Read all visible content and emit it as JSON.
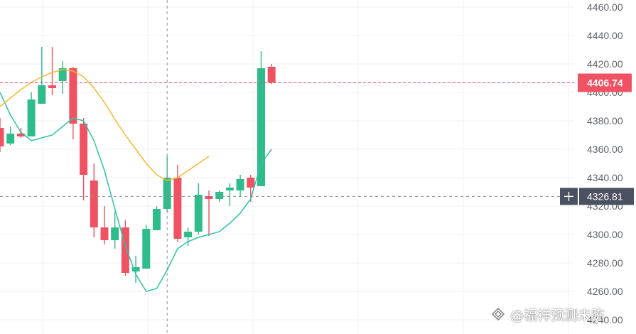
{
  "chart_data": {
    "type": "candlestick",
    "ylim": [
      4230,
      4465
    ],
    "y_ticks": [
      "4240.00",
      "4260.00",
      "4280.00",
      "4300.00",
      "4320.00",
      "4340.00",
      "4360.00",
      "4380.00",
      "4400.00",
      "4420.00",
      "4440.00",
      "4460.00"
    ],
    "candles": [
      {
        "o": 4375,
        "h": 4382,
        "l": 4358,
        "c": 4362
      },
      {
        "o": 4364,
        "h": 4376,
        "l": 4363,
        "c": 4371
      },
      {
        "o": 4371,
        "h": 4375,
        "l": 4368,
        "c": 4369
      },
      {
        "o": 4369,
        "h": 4400,
        "l": 4369,
        "c": 4395
      },
      {
        "o": 4392,
        "h": 4432,
        "l": 4392,
        "c": 4405
      },
      {
        "o": 4405,
        "h": 4432,
        "l": 4398,
        "c": 4403
      },
      {
        "o": 4408,
        "h": 4422,
        "l": 4399,
        "c": 4417
      },
      {
        "o": 4417,
        "h": 4418,
        "l": 4367,
        "c": 4378
      },
      {
        "o": 4378,
        "h": 4382,
        "l": 4324,
        "c": 4342
      },
      {
        "o": 4338,
        "h": 4350,
        "l": 4298,
        "c": 4305
      },
      {
        "o": 4305,
        "h": 4320,
        "l": 4293,
        "c": 4296
      },
      {
        "o": 4296,
        "h": 4316,
        "l": 4290,
        "c": 4305
      },
      {
        "o": 4305,
        "h": 4310,
        "l": 4271,
        "c": 4273
      },
      {
        "o": 4274,
        "h": 4285,
        "l": 4266,
        "c": 4277
      },
      {
        "o": 4276,
        "h": 4307,
        "l": 4276,
        "c": 4304
      },
      {
        "o": 4303,
        "h": 4320,
        "l": 4303,
        "c": 4318
      },
      {
        "o": 4318,
        "h": 4355,
        "l": 4316,
        "c": 4340
      },
      {
        "o": 4340,
        "h": 4349,
        "l": 4295,
        "c": 4297
      },
      {
        "o": 4298,
        "h": 4305,
        "l": 4292,
        "c": 4302
      },
      {
        "o": 4302,
        "h": 4336,
        "l": 4300,
        "c": 4328
      },
      {
        "o": 4327,
        "h": 4331,
        "l": 4299,
        "c": 4325
      },
      {
        "o": 4325,
        "h": 4331,
        "l": 4323,
        "c": 4330
      },
      {
        "o": 4331,
        "h": 4336,
        "l": 4320,
        "c": 4333
      },
      {
        "o": 4331,
        "h": 4342,
        "l": 4327,
        "c": 4339
      },
      {
        "o": 4340,
        "h": 4342,
        "l": 4323,
        "c": 4333
      },
      {
        "o": 4334,
        "h": 4429,
        "l": 4334,
        "c": 4417
      },
      {
        "o": 4418,
        "h": 4420,
        "l": 4406,
        "c": 4407
      }
    ],
    "series": [
      {
        "color": "#2ec4a7",
        "values": [
          4400,
          4384,
          4372,
          4366,
          4368,
          4370,
          4376,
          4382,
          4380,
          4366,
          4345,
          4318,
          4292,
          4272,
          4260,
          4262,
          4275,
          4290,
          4295,
          4298,
          4300,
          4302,
          4308,
          4315,
          4325,
          4350,
          4360
        ]
      },
      {
        "color": "#f5b82e",
        "values": [
          4390,
          4396,
          4402,
          4407,
          4411,
          4414,
          4416,
          4415,
          4411,
          4403,
          4393,
          4381,
          4370,
          4360,
          4350,
          4342,
          4338,
          4340,
          4345,
          4350,
          4355
        ]
      }
    ],
    "price_line": {
      "value": 4406.74,
      "label": "4406.74",
      "color": "#ef5363"
    },
    "crosshair": {
      "price": 4326.81,
      "label": "4326.81",
      "candle_index": 16
    },
    "colors": {
      "up": "#2ebd8a",
      "down": "#ef5363",
      "grid": "#f0f1f3",
      "cross": "#8c8f94"
    }
  },
  "watermark": {
    "text": "@福祥预测未陈",
    "icon": "thinking-bubble-icon"
  }
}
